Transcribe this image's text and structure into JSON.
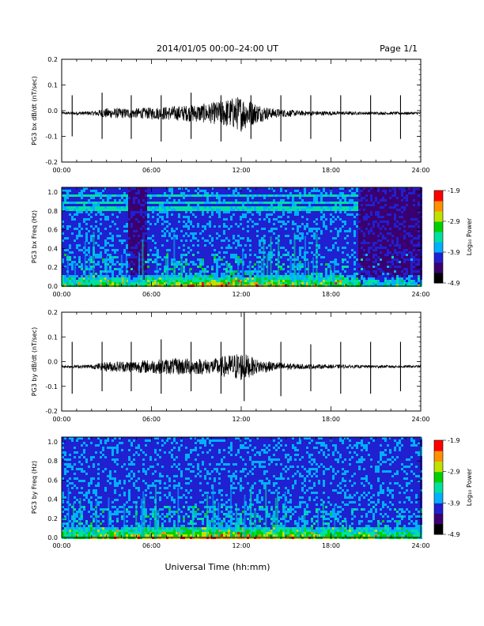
{
  "header": {
    "title": "2014/01/05  00:00–24:00 UT",
    "page": "Page 1/1"
  },
  "xlabel": "Universal Time (hh:mm)",
  "colorbar": {
    "label": "Log₁₀ Power",
    "ticks": [
      "-1.9",
      "-2.9",
      "-3.9",
      "-4.9"
    ],
    "colors": [
      "#000000",
      "#3b0070",
      "#2020d0",
      "#00b0ff",
      "#00e0a0",
      "#00d000",
      "#c0e000",
      "#ff9000",
      "#ff0000"
    ]
  },
  "chart_data": [
    {
      "type": "line",
      "ylabel": "PG3 bx dB/dt (nT/sec)",
      "x_ticks": [
        "00:00",
        "06:00",
        "12:00",
        "18:00",
        "24:00"
      ],
      "y_ticks": [
        "0.2",
        "0.1",
        "0.0",
        "-0.1",
        "-0.2"
      ],
      "xlim": [
        0,
        24
      ],
      "ylim": [
        -0.2,
        0.2
      ],
      "baseline": -0.01,
      "spikes": [
        {
          "t": 0.7,
          "hi": 0.06,
          "lo": -0.1
        },
        {
          "t": 2.7,
          "hi": 0.07,
          "lo": -0.11
        },
        {
          "t": 4.65,
          "hi": 0.06,
          "lo": -0.11
        },
        {
          "t": 6.65,
          "hi": 0.06,
          "lo": -0.12
        },
        {
          "t": 8.65,
          "hi": 0.07,
          "lo": -0.11
        },
        {
          "t": 10.65,
          "hi": 0.06,
          "lo": -0.12
        },
        {
          "t": 12.65,
          "hi": 0.06,
          "lo": -0.11
        },
        {
          "t": 14.65,
          "hi": 0.06,
          "lo": -0.12
        },
        {
          "t": 16.65,
          "hi": 0.06,
          "lo": -0.11
        },
        {
          "t": 18.65,
          "hi": 0.06,
          "lo": -0.12
        },
        {
          "t": 20.65,
          "hi": 0.06,
          "lo": -0.12
        },
        {
          "t": 22.65,
          "hi": 0.06,
          "lo": -0.11
        }
      ],
      "noise": [
        {
          "t": 0,
          "a": 0.005
        },
        {
          "t": 2,
          "a": 0.008
        },
        {
          "t": 3,
          "a": 0.02
        },
        {
          "t": 5,
          "a": 0.02
        },
        {
          "t": 8,
          "a": 0.03
        },
        {
          "t": 10,
          "a": 0.04
        },
        {
          "t": 12,
          "a": 0.07
        },
        {
          "t": 13,
          "a": 0.04
        },
        {
          "t": 14,
          "a": 0.02
        },
        {
          "t": 16,
          "a": 0.01
        },
        {
          "t": 20,
          "a": 0.006
        },
        {
          "t": 24,
          "a": 0.005
        }
      ]
    },
    {
      "type": "heatmap",
      "ylabel": "PG3 bx Freq (Hz)",
      "x_ticks": [
        "00:00",
        "06:00",
        "12:00",
        "18:00",
        "24:00"
      ],
      "y_ticks": [
        "1.0",
        "0.8",
        "0.6",
        "0.4",
        "0.2",
        "0.0"
      ],
      "xlim": [
        0,
        24
      ],
      "ylim": [
        0,
        1.05
      ],
      "zlim": [
        -4.9,
        -1.9
      ],
      "dark_intervals": [
        [
          4.4,
          5.6
        ],
        [
          19.8,
          24
        ]
      ],
      "line_freqs": [
        0.97,
        0.91,
        0.86,
        0.83
      ],
      "activity": [
        {
          "t": 0,
          "a": 0.3
        },
        {
          "t": 3,
          "a": 0.4
        },
        {
          "t": 6,
          "a": 0.5
        },
        {
          "t": 9,
          "a": 0.6
        },
        {
          "t": 11,
          "a": 0.7
        },
        {
          "t": 13,
          "a": 0.6
        },
        {
          "t": 16,
          "a": 0.5
        },
        {
          "t": 19,
          "a": 0.35
        },
        {
          "t": 24,
          "a": 0.3
        }
      ]
    },
    {
      "type": "line",
      "ylabel": "PG3 by dB/dt (nT/sec)",
      "x_ticks": [
        "00:00",
        "06:00",
        "12:00",
        "18:00",
        "24:00"
      ],
      "y_ticks": [
        "0.2",
        "0.1",
        "0.0",
        "-0.1",
        "-0.2"
      ],
      "xlim": [
        0,
        24
      ],
      "ylim": [
        -0.2,
        0.2
      ],
      "baseline": -0.02,
      "spikes": [
        {
          "t": 0.7,
          "hi": 0.08,
          "lo": -0.13
        },
        {
          "t": 2.7,
          "hi": 0.08,
          "lo": -0.12
        },
        {
          "t": 4.65,
          "hi": 0.08,
          "lo": -0.12
        },
        {
          "t": 6.65,
          "hi": 0.09,
          "lo": -0.13
        },
        {
          "t": 8.65,
          "hi": 0.08,
          "lo": -0.12
        },
        {
          "t": 10.65,
          "hi": 0.08,
          "lo": -0.13
        },
        {
          "t": 12.2,
          "hi": 0.2,
          "lo": -0.16
        },
        {
          "t": 14.65,
          "hi": 0.08,
          "lo": -0.14
        },
        {
          "t": 16.65,
          "hi": 0.07,
          "lo": -0.12
        },
        {
          "t": 18.65,
          "hi": 0.08,
          "lo": -0.13
        },
        {
          "t": 20.65,
          "hi": 0.08,
          "lo": -0.13
        },
        {
          "t": 22.65,
          "hi": 0.08,
          "lo": -0.12
        }
      ],
      "noise": [
        {
          "t": 0,
          "a": 0.005
        },
        {
          "t": 2,
          "a": 0.008
        },
        {
          "t": 3,
          "a": 0.02
        },
        {
          "t": 5,
          "a": 0.025
        },
        {
          "t": 8,
          "a": 0.035
        },
        {
          "t": 10,
          "a": 0.03
        },
        {
          "t": 12,
          "a": 0.06
        },
        {
          "t": 13,
          "a": 0.03
        },
        {
          "t": 14,
          "a": 0.02
        },
        {
          "t": 16,
          "a": 0.01
        },
        {
          "t": 20,
          "a": 0.006
        },
        {
          "t": 24,
          "a": 0.005
        }
      ]
    },
    {
      "type": "heatmap",
      "ylabel": "PG3 by Freq (Hz)",
      "x_ticks": [
        "00:00",
        "06:00",
        "12:00",
        "18:00",
        "24:00"
      ],
      "y_ticks": [
        "1.0",
        "0.8",
        "0.6",
        "0.4",
        "0.2",
        "0.0"
      ],
      "xlim": [
        0,
        24
      ],
      "ylim": [
        0,
        1.05
      ],
      "zlim": [
        -4.9,
        -1.9
      ],
      "dark_intervals": [],
      "line_freqs": [],
      "activity": [
        {
          "t": 0,
          "a": 0.3
        },
        {
          "t": 3,
          "a": 0.45
        },
        {
          "t": 6,
          "a": 0.55
        },
        {
          "t": 9,
          "a": 0.65
        },
        {
          "t": 11,
          "a": 0.7
        },
        {
          "t": 13,
          "a": 0.6
        },
        {
          "t": 15,
          "a": 0.55
        },
        {
          "t": 19,
          "a": 0.35
        },
        {
          "t": 24,
          "a": 0.3
        }
      ]
    }
  ]
}
